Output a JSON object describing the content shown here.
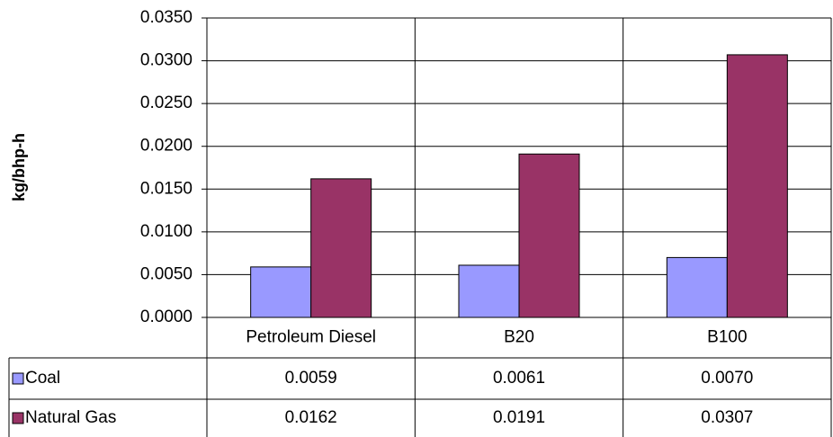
{
  "chart_data": {
    "type": "bar",
    "ylabel": "kg/bhp-h",
    "categories": [
      "Petroleum Diesel",
      "B20",
      "B100"
    ],
    "series": [
      {
        "name": "Coal",
        "color": "#9999ff",
        "values": [
          0.0059,
          0.0061,
          0.007
        ],
        "value_labels": [
          "0.0059",
          "0.0061",
          "0.0070"
        ]
      },
      {
        "name": "Natural Gas",
        "color": "#993366",
        "values": [
          0.0162,
          0.0191,
          0.0307
        ],
        "value_labels": [
          "0.0162",
          "0.0191",
          "0.0307"
        ]
      }
    ],
    "ylim": [
      0,
      0.035
    ],
    "yticks": [
      {
        "value": 0,
        "label": "0.0000"
      },
      {
        "value": 0.005,
        "label": "0.0050"
      },
      {
        "value": 0.01,
        "label": "0.0100"
      },
      {
        "value": 0.015,
        "label": "0.0150"
      },
      {
        "value": 0.02,
        "label": "0.0200"
      },
      {
        "value": 0.025,
        "label": "0.0250"
      },
      {
        "value": 0.03,
        "label": "0.0300"
      },
      {
        "value": 0.035,
        "label": "0.0350"
      }
    ],
    "grid": true
  }
}
